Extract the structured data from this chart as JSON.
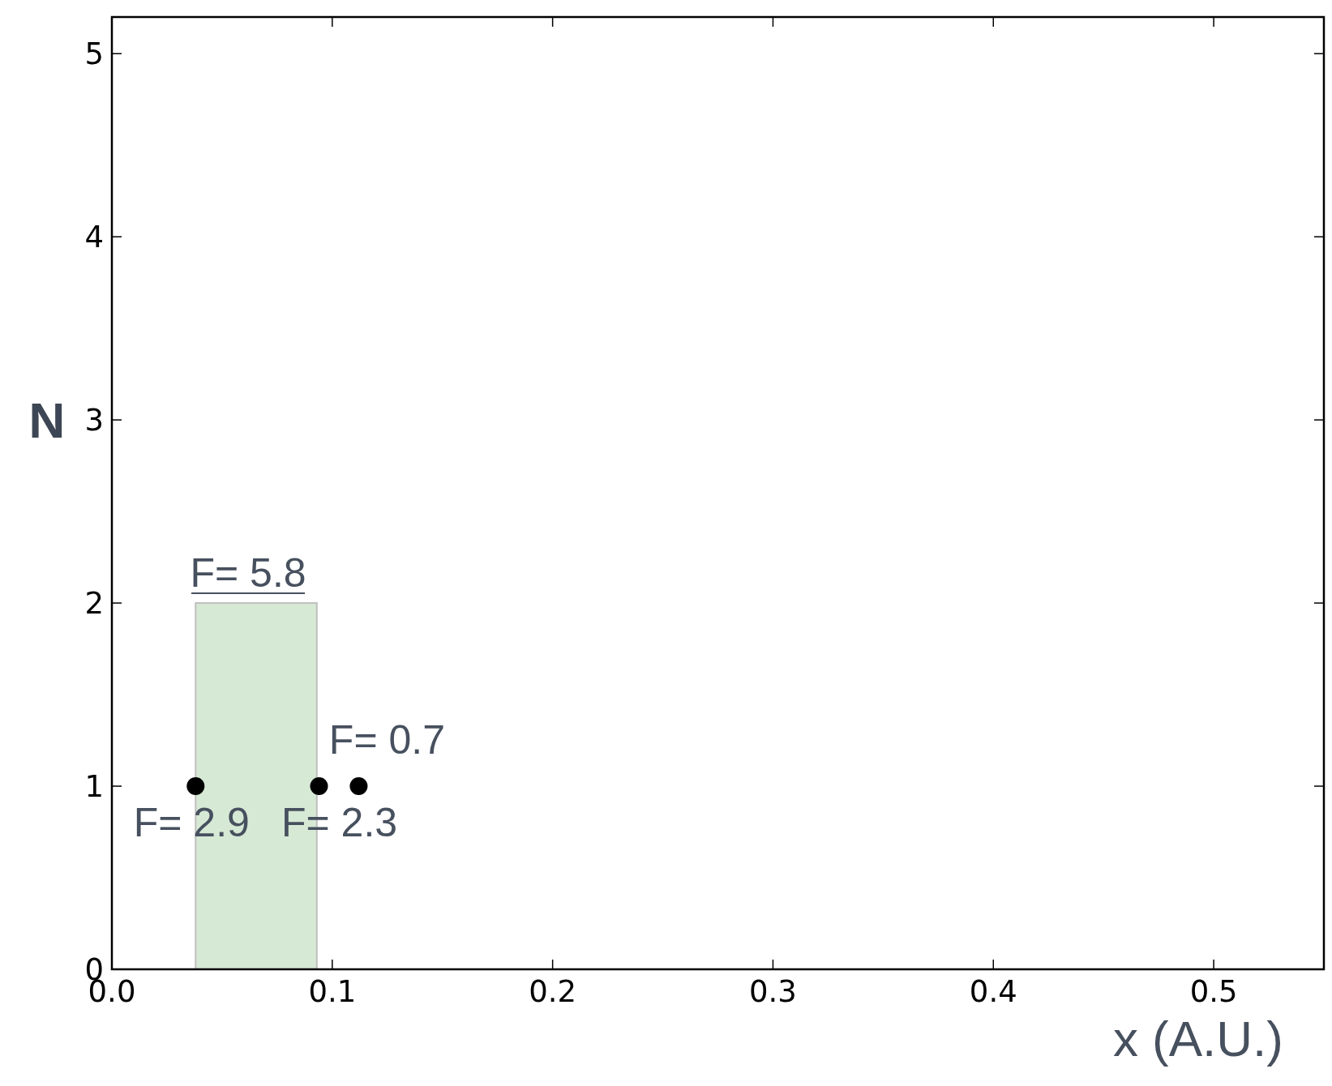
{
  "chart_data": {
    "type": "histogram",
    "xlabel": "x (A.U.)",
    "ylabel": "N",
    "xlim": [
      0,
      0.55
    ],
    "ylim": [
      0,
      5.2
    ],
    "xticks": [
      {
        "value": 0,
        "label": "0.0"
      },
      0.1,
      0.2,
      0.3,
      0.4,
      0.5
    ],
    "yticks": [
      0,
      1,
      2,
      3,
      4,
      5
    ],
    "series": [
      {
        "bins": [
          0.038,
          0.093
        ],
        "values": [
          2
        ],
        "color": "#d6e9d5"
      },
      {
        "type": "scatter",
        "x": [
          0.038,
          0.094,
          0.112
        ],
        "values": [
          1,
          1,
          1
        ],
        "color": "#000000"
      }
    ],
    "marker": "circle",
    "grid": false,
    "annotations": [
      {
        "text": "F= 5.8",
        "x": 0.0655,
        "y": 2
      },
      {
        "text": "F= 2.9",
        "x": 0.038,
        "y": 1
      },
      {
        "text": "F= 2.3",
        "x": 0.094,
        "y": 1
      },
      {
        "text": "F= 0.7",
        "x": 0.112,
        "y": 1
      }
    ]
  }
}
